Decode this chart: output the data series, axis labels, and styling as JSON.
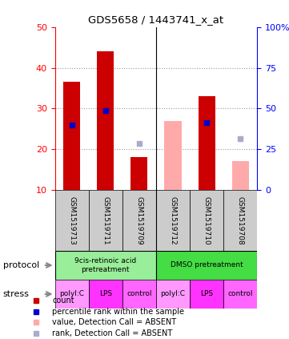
{
  "title": "GDS5658 / 1443741_x_at",
  "samples": [
    "GSM1519713",
    "GSM1519711",
    "GSM1519709",
    "GSM1519712",
    "GSM1519710",
    "GSM1519708"
  ],
  "red_bar_heights": [
    36.5,
    44.0,
    18.0,
    null,
    33.0,
    null
  ],
  "blue_marker_heights": [
    26.0,
    29.5,
    null,
    null,
    26.5,
    null
  ],
  "pink_bar_heights": [
    null,
    null,
    null,
    27.0,
    null,
    17.0
  ],
  "lightblue_marker_heights": [
    null,
    null,
    21.5,
    null,
    null,
    22.5
  ],
  "ylim_left": [
    10,
    50
  ],
  "ylim_right": [
    0,
    100
  ],
  "yticks_left": [
    10,
    20,
    30,
    40,
    50
  ],
  "yticks_right": [
    0,
    25,
    50,
    75,
    100
  ],
  "yticklabels_right": [
    "0",
    "25",
    "50",
    "75",
    "100%"
  ],
  "protocol_groups": [
    {
      "label": "9cis-retinoic acid\npretreatment",
      "start": 0,
      "end": 3,
      "color": "#99ee99"
    },
    {
      "label": "DMSO pretreatment",
      "start": 3,
      "end": 6,
      "color": "#44dd44"
    }
  ],
  "stress_labels": [
    "polyI:C",
    "LPS",
    "control",
    "polyI:C",
    "LPS",
    "control"
  ],
  "stress_bg_colors": [
    "#ff99ff",
    "#ff33ff",
    "#ff66ff",
    "#ff99ff",
    "#ff33ff",
    "#ff66ff"
  ],
  "bar_width": 0.5,
  "red_color": "#cc0000",
  "blue_color": "#0000cc",
  "pink_color": "#ffaaaa",
  "lightblue_color": "#aaaacc",
  "bg_color": "#cccccc",
  "grid_color": "#999999",
  "left_label_protocol": "protocol",
  "left_label_stress": "stress"
}
